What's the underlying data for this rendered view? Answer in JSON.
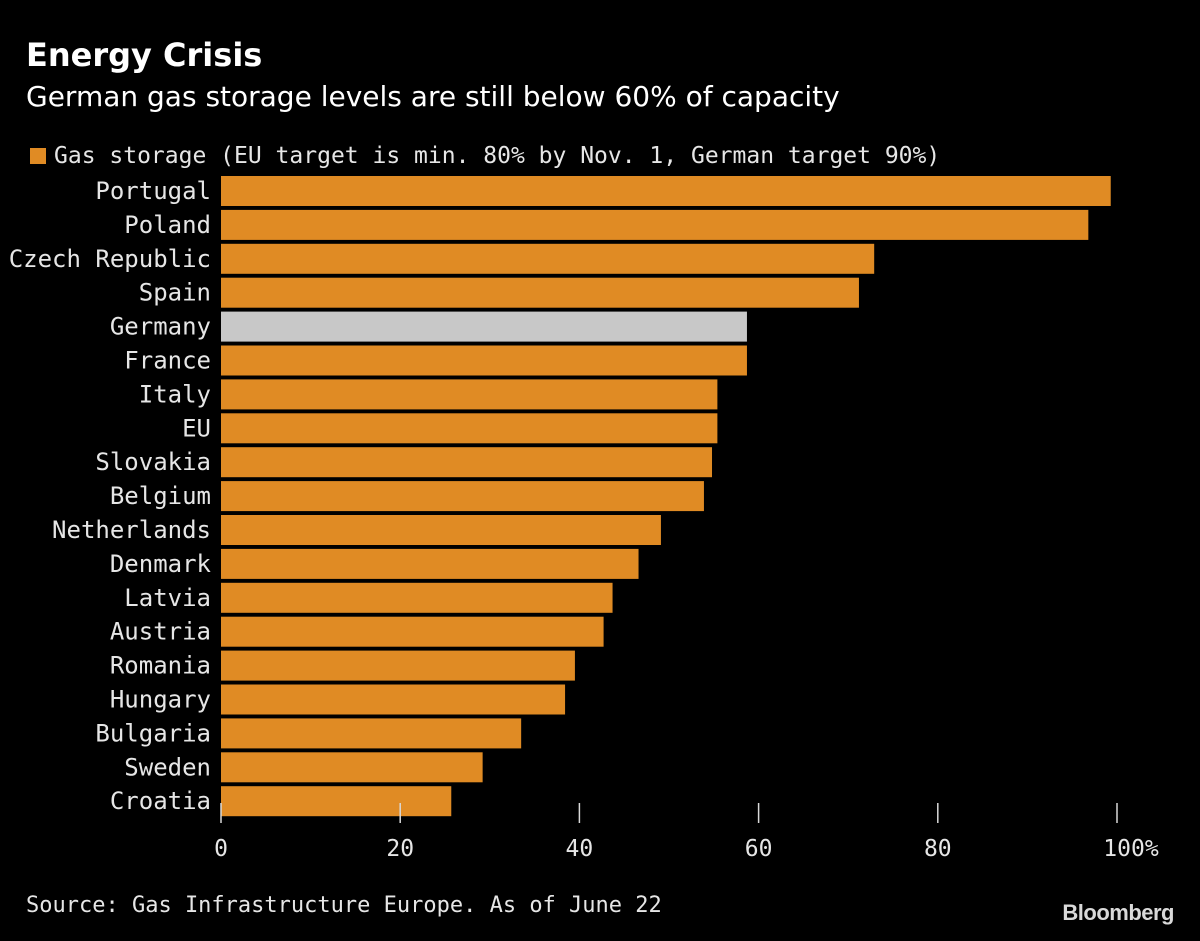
{
  "header": {
    "title": "Energy Crisis",
    "subtitle": "German gas storage levels are still below 60% of capacity"
  },
  "legend": {
    "label": "Gas storage (EU target is min. 80% by Nov. 1, German target 90%)"
  },
  "footer": {
    "source": "Source: Gas Infrastructure Europe. As of June 22",
    "brand": "Bloomberg"
  },
  "colors": {
    "bar": "#e08b24",
    "highlight": "#c8c8c8",
    "background": "#000000",
    "text": "#e6e6e6",
    "axis": "#d9d9d9"
  },
  "chart_data": {
    "type": "bar",
    "orientation": "horizontal",
    "title": "Energy Crisis",
    "subtitle": "German gas storage levels are still below 60% of capacity",
    "xlabel": "",
    "ylabel": "",
    "xlim": [
      0,
      100
    ],
    "xticks": [
      0,
      20,
      40,
      60,
      80,
      100
    ],
    "xtick_labels": [
      "0",
      "20",
      "40",
      "60",
      "80",
      "100%"
    ],
    "grid": false,
    "legend_position": "top-left",
    "highlight_category": "Germany",
    "categories": [
      "Portugal",
      "Poland",
      "Czech Republic",
      "Spain",
      "Germany",
      "France",
      "Italy",
      "EU",
      "Slovakia",
      "Belgium",
      "Netherlands",
      "Denmark",
      "Latvia",
      "Austria",
      "Romania",
      "Hungary",
      "Bulgaria",
      "Sweden",
      "Croatia"
    ],
    "series": [
      {
        "name": "Gas storage (EU target is min. 80% by Nov. 1, German target 90%)",
        "values": [
          99.3,
          96.8,
          72.9,
          71.2,
          58.7,
          58.7,
          55.4,
          55.4,
          54.8,
          53.9,
          49.1,
          46.6,
          43.7,
          42.7,
          39.5,
          38.4,
          33.5,
          29.2,
          25.7
        ]
      }
    ]
  }
}
